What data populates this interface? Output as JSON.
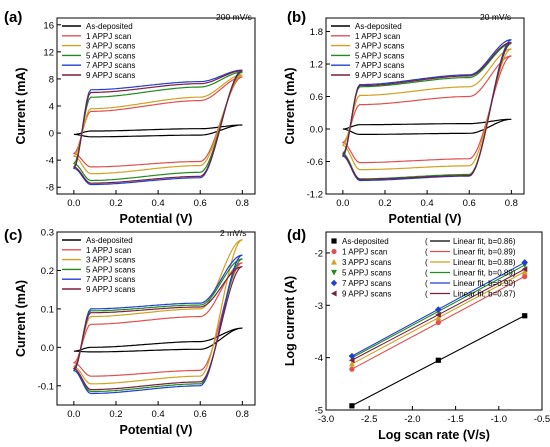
{
  "chart_data": [
    {
      "panel_label": "(a)",
      "type": "line",
      "annotation": "200 mV/s",
      "xlabel": "Potential (V)",
      "ylabel": "Current (mA)",
      "xlim": [
        -0.08,
        0.86
      ],
      "ylim": [
        -9,
        17
      ],
      "xticks": [
        0.0,
        0.2,
        0.4,
        0.6,
        0.8
      ],
      "xtick_labels": [
        "0.0",
        "0.2",
        "0.4",
        "0.6",
        "0.8"
      ],
      "yticks": [
        -8,
        -4,
        0,
        4,
        8,
        12,
        16
      ],
      "ytick_labels": [
        "-8",
        "-4",
        "0",
        "4",
        "8",
        "12",
        "16"
      ],
      "legend_position": "top-left",
      "series": [
        {
          "name": "As-deposited",
          "color": "#000000",
          "curve": {
            "top": [
              -0.2,
              0.3,
              0.65,
              1.2
            ],
            "bottom": [
              -0.2,
              -0.55,
              -0.3,
              1.2
            ]
          }
        },
        {
          "name": "1 APPJ scan",
          "color": "#e05050",
          "curve": {
            "top": [
              -3.0,
              3.2,
              4.8,
              8.3
            ],
            "bottom": [
              -3.0,
              -5.0,
              -4.2,
              8.3
            ]
          }
        },
        {
          "name": "3 APPJ scans",
          "color": "#d4a020",
          "curve": {
            "top": [
              -3.4,
              3.6,
              5.3,
              8.6
            ],
            "bottom": [
              -3.4,
              -6.0,
              -4.8,
              8.6
            ]
          }
        },
        {
          "name": "5 APPJ scans",
          "color": "#1e8c1e",
          "curve": {
            "top": [
              -4.5,
              5.3,
              6.8,
              9.0
            ],
            "bottom": [
              -4.5,
              -7.0,
              -5.8,
              9.0
            ]
          }
        },
        {
          "name": "7 APPJ scans",
          "color": "#1f3fd0",
          "curve": {
            "top": [
              -5.2,
              6.4,
              7.6,
              9.3
            ],
            "bottom": [
              -5.2,
              -7.6,
              -6.6,
              9.3
            ]
          }
        },
        {
          "name": "9 APPJ scans",
          "color": "#7a1f3d",
          "curve": {
            "top": [
              -5.0,
              6.0,
              7.3,
              9.2
            ],
            "bottom": [
              -5.0,
              -7.4,
              -6.4,
              9.2
            ]
          }
        }
      ]
    },
    {
      "panel_label": "(b)",
      "type": "line",
      "annotation": "20 mV/s",
      "xlabel": "Potential (V)",
      "ylabel": "Current (mA)",
      "xlim": [
        -0.08,
        0.86
      ],
      "ylim": [
        -1.2,
        2.05
      ],
      "xticks": [
        0.0,
        0.2,
        0.4,
        0.6,
        0.8
      ],
      "xtick_labels": [
        "0.0",
        "0.2",
        "0.4",
        "0.6",
        "0.8"
      ],
      "yticks": [
        -1.2,
        -0.6,
        0.0,
        0.6,
        1.2,
        1.8
      ],
      "ytick_labels": [
        "-1.2",
        "-0.6",
        "0.0",
        "0.6",
        "1.2",
        "1.8"
      ],
      "legend_position": "top-left",
      "series": [
        {
          "name": "As-deposited",
          "color": "#000000",
          "curve": {
            "top": [
              0.0,
              0.08,
              0.1,
              0.18
            ],
            "bottom": [
              0.0,
              -0.1,
              -0.08,
              0.18
            ]
          }
        },
        {
          "name": "1 APPJ scan",
          "color": "#e05050",
          "curve": {
            "top": [
              -0.25,
              0.45,
              0.6,
              1.35
            ],
            "bottom": [
              -0.25,
              -0.62,
              -0.55,
              1.35
            ]
          }
        },
        {
          "name": "3 APPJ scans",
          "color": "#d4a020",
          "curve": {
            "top": [
              -0.3,
              0.62,
              0.78,
              1.48
            ],
            "bottom": [
              -0.3,
              -0.75,
              -0.68,
              1.48
            ]
          }
        },
        {
          "name": "5 APPJ scans",
          "color": "#1e8c1e",
          "curve": {
            "top": [
              -0.45,
              0.78,
              0.95,
              1.58
            ],
            "bottom": [
              -0.45,
              -0.92,
              -0.84,
              1.58
            ]
          }
        },
        {
          "name": "7 APPJ scans",
          "color": "#1f3fd0",
          "curve": {
            "top": [
              -0.5,
              0.82,
              1.0,
              1.65
            ],
            "bottom": [
              -0.5,
              -0.95,
              -0.87,
              1.65
            ]
          }
        },
        {
          "name": "9 APPJ scans",
          "color": "#7a1f3d",
          "curve": {
            "top": [
              -0.48,
              0.8,
              0.98,
              1.6
            ],
            "bottom": [
              -0.48,
              -0.93,
              -0.86,
              1.6
            ]
          }
        }
      ]
    },
    {
      "panel_label": "(c)",
      "type": "line",
      "annotation": "2 mV/s",
      "xlabel": "Potential (V)",
      "ylabel": "Current (mA)",
      "xlim": [
        -0.08,
        0.86
      ],
      "ylim": [
        -0.15,
        0.3
      ],
      "xticks": [
        0.0,
        0.2,
        0.4,
        0.6,
        0.8
      ],
      "xtick_labels": [
        "0.0",
        "0.2",
        "0.4",
        "0.6",
        "0.8"
      ],
      "yticks": [
        -0.1,
        0.0,
        0.1,
        0.2,
        0.3
      ],
      "ytick_labels": [
        "-0.1",
        "0.0",
        "0.1",
        "0.2",
        "0.3"
      ],
      "legend_position": "top-left",
      "series": [
        {
          "name": "As-deposited",
          "color": "#000000",
          "curve": {
            "top": [
              -0.01,
              0.0,
              0.015,
              0.05
            ],
            "bottom": [
              -0.01,
              -0.012,
              -0.005,
              0.05
            ]
          }
        },
        {
          "name": "1 APPJ scan",
          "color": "#e05050",
          "curve": {
            "top": [
              -0.04,
              0.06,
              0.08,
              0.22
            ],
            "bottom": [
              -0.04,
              -0.075,
              -0.06,
              0.22
            ]
          }
        },
        {
          "name": "3 APPJ scans",
          "color": "#d4a020",
          "curve": {
            "top": [
              -0.05,
              0.08,
              0.1,
              0.28
            ],
            "bottom": [
              -0.05,
              -0.095,
              -0.075,
              0.28
            ]
          }
        },
        {
          "name": "5 APPJ scans",
          "color": "#1e8c1e",
          "curve": {
            "top": [
              -0.06,
              0.095,
              0.11,
              0.23
            ],
            "bottom": [
              -0.06,
              -0.115,
              -0.095,
              0.23
            ]
          }
        },
        {
          "name": "7 APPJ scans",
          "color": "#1f3fd0",
          "curve": {
            "top": [
              -0.06,
              0.1,
              0.115,
              0.24
            ],
            "bottom": [
              -0.06,
              -0.12,
              -0.1,
              0.24
            ]
          }
        },
        {
          "name": "9 APPJ scans",
          "color": "#7a1f3d",
          "curve": {
            "top": [
              -0.055,
              0.09,
              0.105,
              0.21
            ],
            "bottom": [
              -0.055,
              -0.11,
              -0.09,
              0.21
            ]
          }
        }
      ]
    },
    {
      "panel_label": "(d)",
      "type": "scatter",
      "xlabel": "Log scan rate (V/s)",
      "ylabel": "Log current (A)",
      "xlim": [
        -3.0,
        -0.5
      ],
      "ylim": [
        -5.0,
        -1.6
      ],
      "xticks": [
        -3.0,
        -2.5,
        -2.0,
        -1.5,
        -1.0,
        -0.5
      ],
      "xtick_labels": [
        "-3.0",
        "-2.5",
        "-2.0",
        "-1.5",
        "-1.0",
        "-0.5"
      ],
      "yticks": [
        -5,
        -4,
        -3,
        -2
      ],
      "ytick_labels": [
        "-5",
        "-4",
        "-3",
        "-2"
      ],
      "legend_position": "top-left",
      "x": [
        -2.7,
        -1.7,
        -0.7
      ],
      "series": [
        {
          "name": "As-deposited",
          "fit_label": "Linear fit, b=0.86",
          "color": "#000000",
          "marker": "square",
          "values": [
            -4.92,
            -4.05,
            -3.2
          ]
        },
        {
          "name": "1 APPJ scan",
          "fit_label": "Linear fit, b=0.89",
          "color": "#e05050",
          "marker": "circle",
          "values": [
            -4.22,
            -3.33,
            -2.45
          ]
        },
        {
          "name": "3 APPJ scans",
          "fit_label": "Linear fit, b=0.88",
          "color": "#d4a020",
          "marker": "triangle-up",
          "values": [
            -4.12,
            -3.24,
            -2.36
          ]
        },
        {
          "name": "5 APPJ scans",
          "fit_label": "Linear fit, b=0.89",
          "color": "#1e8c1e",
          "marker": "triangle-down",
          "values": [
            -4.0,
            -3.12,
            -2.23
          ]
        },
        {
          "name": "7 APPJ scans",
          "fit_label": "Linear fit, b=0.90",
          "color": "#1f3fd0",
          "marker": "diamond",
          "values": [
            -3.97,
            -3.08,
            -2.18
          ]
        },
        {
          "name": "9 APPJ scans",
          "fit_label": "Linear fit, b=0.87",
          "color": "#7a1f3d",
          "marker": "triangle-left",
          "values": [
            -4.05,
            -3.18,
            -2.31
          ]
        }
      ]
    }
  ]
}
